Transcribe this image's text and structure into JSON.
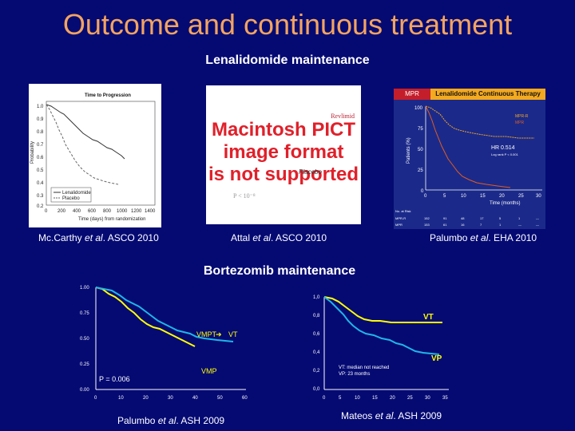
{
  "slide": {
    "title": "Outcome and continuous treatment",
    "section1": "Lenalidomide  maintenance",
    "section2": "Bortezomib  maintenance"
  },
  "citations": {
    "mccarthy": {
      "author": "Mc.Carthy ",
      "etal": "et al",
      "rest": ". ASCO 2010"
    },
    "attal": {
      "author": "Attal ",
      "etal": "et al",
      "rest": ". ASCO 2010"
    },
    "palumbo_eha": {
      "author": "Palumbo ",
      "etal": "et al",
      "rest": ". EHA 2010"
    },
    "palumbo_ash": {
      "author": "Palumbo ",
      "etal": "et al",
      "rest": ". ASH 2009"
    },
    "mateos": {
      "author": "Mateos ",
      "etal": "et al",
      "rest": ". ASH 2009"
    }
  },
  "mccarthy_chart": {
    "title": "Time to Progression",
    "ylabel": "Probability",
    "xlabel": "Time (days) from randomization",
    "yticks": [
      "1.0",
      "0.9",
      "0.8",
      "0.7",
      "0.6",
      "0.5",
      "0.4",
      "0.3",
      "0.2"
    ],
    "xticks": [
      "0",
      "200",
      "400",
      "600",
      "800",
      "1000",
      "1200",
      "1400"
    ],
    "legend": [
      "Lenalidomide",
      "Placebo"
    ],
    "colors": {
      "lenalidomide": "#333333",
      "placebo": "#666666"
    }
  },
  "attal_image": {
    "placeholder": [
      "Macintosh PICT",
      "image format",
      "is not supported"
    ],
    "label_top": "Revlimid",
    "label_mid": "Placebo",
    "pvalue": "P < 10⁻⁸",
    "color": "#e0202a"
  },
  "palumbo_eha_chart": {
    "tab_left": "MPR",
    "tab_right": "Lenalidomide Continuous Therapy",
    "ylabel": "Patients (%)",
    "xlabel": "Time (months)",
    "yticks": [
      "100",
      "75",
      "50",
      "25",
      "0"
    ],
    "xticks": [
      "0",
      "5",
      "10",
      "15",
      "20",
      "25",
      "30"
    ],
    "legend": [
      "MPR-R",
      "MPR"
    ],
    "hr": "HR 0.514",
    "logrank": "Log rank P < 0.001",
    "risk_header": "No. at Risk",
    "risk_rows": [
      {
        "label": "MPR-R",
        "values": [
          "152",
          "91",
          "48",
          "17",
          "5",
          "1",
          "—"
        ]
      },
      {
        "label": "MPR",
        "values": [
          "153",
          "61",
          "16",
          "7",
          "1",
          "—",
          "—"
        ]
      }
    ],
    "colors": {
      "mprr": "#f5a623",
      "mpr": "#e35b1e",
      "tab_left": "#c41e2a",
      "tab_right": "#f4a91e"
    }
  },
  "vmp_chart": {
    "yticks": [
      "1.00",
      "0.75",
      "0.50",
      "0.25",
      "0.00"
    ],
    "xticks": [
      "0",
      "10",
      "20",
      "30",
      "40",
      "50",
      "60"
    ],
    "label_vmpt": "VMPT",
    "label_vt": "VT",
    "label_vmp": "VMP",
    "pvalue": "P = 0.006",
    "colors": {
      "vmpt": "#1fb6e8",
      "vmp": "#ffff00"
    }
  },
  "mateos_chart": {
    "yticks": [
      "1,0",
      "0,8",
      "0,6",
      "0,4",
      "0,2",
      "0,0"
    ],
    "xticks": [
      "0",
      "5",
      "10",
      "15",
      "20",
      "25",
      "30",
      "35"
    ],
    "label_vt": "VT",
    "label_vp": "VP",
    "note_line1": "VT: median not reached",
    "note_line2": "VP: 23 months",
    "colors": {
      "vt": "#ffff00",
      "vp": "#1fb6e8"
    }
  }
}
